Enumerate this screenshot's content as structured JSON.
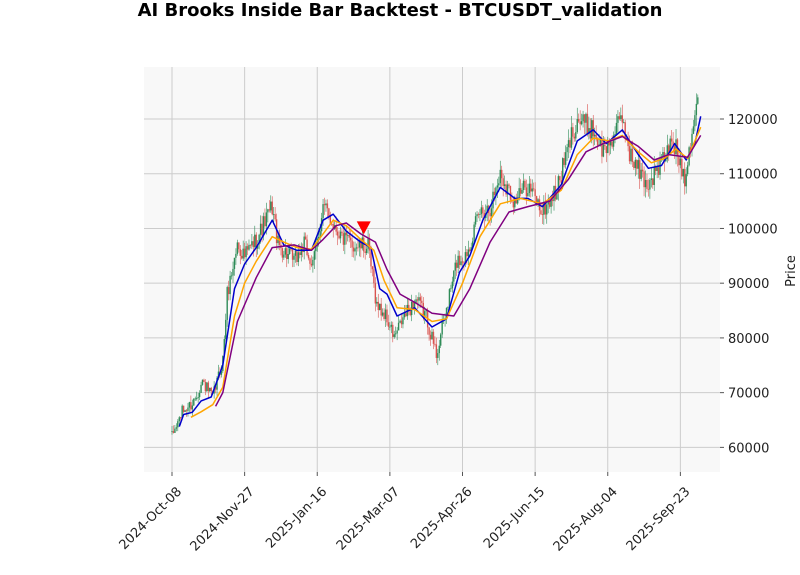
{
  "chart_data": {
    "type": "candlestick",
    "title": "AI Brooks Inside Bar Backtest - BTCUSDT_validation",
    "xlabel": "",
    "ylabel": "Price",
    "x_start": "2024-10-08",
    "x_end": "2025-10-01",
    "ylim": [
      55500,
      129500
    ],
    "grid": true,
    "y_axis_side": "right",
    "x_ticks": [
      "2024-Oct-08",
      "2024-Nov-27",
      "2025-Jan-16",
      "2025-Mar-07",
      "2025-Apr-26",
      "2025-Jun-15",
      "2025-Aug-04",
      "2025-Sep-23"
    ],
    "y_ticks": [
      60000,
      70000,
      80000,
      90000,
      100000,
      110000,
      120000
    ],
    "colors": {
      "up": "#2e8b57",
      "down": "#d9534f",
      "ma_fast": "#0000cc",
      "ma_mid": "#ffa500",
      "ma_slow": "#800080",
      "signal": "#ff0000",
      "plot_bg": "#f8f8f8",
      "grid": "#cccccc"
    },
    "close_anchors": [
      [
        "2024-10-08",
        62000
      ],
      [
        "2024-10-15",
        66500
      ],
      [
        "2024-10-22",
        68000
      ],
      [
        "2024-10-29",
        72000
      ],
      [
        "2024-11-05",
        69000
      ],
      [
        "2024-11-12",
        76000
      ],
      [
        "2024-11-15",
        88000
      ],
      [
        "2024-11-22",
        97000
      ],
      [
        "2024-11-27",
        95000
      ],
      [
        "2024-12-05",
        98000
      ],
      [
        "2024-12-16",
        104000
      ],
      [
        "2024-12-20",
        97000
      ],
      [
        "2024-12-31",
        94000
      ],
      [
        "2025-01-07",
        97000
      ],
      [
        "2025-01-13",
        93000
      ],
      [
        "2025-01-20",
        104000
      ],
      [
        "2025-01-27",
        101000
      ],
      [
        "2025-02-03",
        98000
      ],
      [
        "2025-02-10",
        97000
      ],
      [
        "2025-02-20",
        96500
      ],
      [
        "2025-02-26",
        86000
      ],
      [
        "2025-03-04",
        84000
      ],
      [
        "2025-03-10",
        80000
      ],
      [
        "2025-03-17",
        84000
      ],
      [
        "2025-03-25",
        87000
      ],
      [
        "2025-04-01",
        84000
      ],
      [
        "2025-04-08",
        77000
      ],
      [
        "2025-04-14",
        84000
      ],
      [
        "2025-04-22",
        94000
      ],
      [
        "2025-04-28",
        95000
      ],
      [
        "2025-05-08",
        103000
      ],
      [
        "2025-05-15",
        104000
      ],
      [
        "2025-05-22",
        110000
      ],
      [
        "2025-06-01",
        105000
      ],
      [
        "2025-06-10",
        108000
      ],
      [
        "2025-06-20",
        103000
      ],
      [
        "2025-06-30",
        107000
      ],
      [
        "2025-07-10",
        117000
      ],
      [
        "2025-07-14",
        120000
      ],
      [
        "2025-07-25",
        118000
      ],
      [
        "2025-08-01",
        114000
      ],
      [
        "2025-08-08",
        117000
      ],
      [
        "2025-08-14",
        120000
      ],
      [
        "2025-08-20",
        113000
      ],
      [
        "2025-08-31",
        108000
      ],
      [
        "2025-09-08",
        111000
      ],
      [
        "2025-09-18",
        116000
      ],
      [
        "2025-09-26",
        109500
      ],
      [
        "2025-10-01",
        118000
      ],
      [
        "2025-10-05",
        124000
      ]
    ],
    "moving_averages": [
      {
        "color": "#0000cc",
        "points": [
          [
            "2024-10-13",
            63800
          ],
          [
            "2024-10-16",
            66000
          ],
          [
            "2024-10-22",
            66400
          ],
          [
            "2024-10-28",
            68500
          ],
          [
            "2024-11-04",
            69200
          ],
          [
            "2024-11-12",
            75000
          ],
          [
            "2024-11-20",
            89000
          ],
          [
            "2024-11-27",
            93500
          ],
          [
            "2024-12-05",
            96500
          ],
          [
            "2024-12-16",
            101500
          ],
          [
            "2024-12-24",
            97000
          ],
          [
            "2025-01-02",
            96000
          ],
          [
            "2025-01-12",
            96000
          ],
          [
            "2025-01-20",
            101500
          ],
          [
            "2025-01-27",
            102600
          ],
          [
            "2025-02-05",
            99500
          ],
          [
            "2025-02-15",
            97500
          ],
          [
            "2025-02-22",
            96500
          ],
          [
            "2025-02-28",
            89000
          ],
          [
            "2025-03-05",
            88000
          ],
          [
            "2025-03-12",
            84000
          ],
          [
            "2025-03-24",
            85500
          ],
          [
            "2025-04-05",
            82000
          ],
          [
            "2025-04-15",
            83500
          ],
          [
            "2025-04-24",
            92000
          ],
          [
            "2025-05-01",
            95000
          ],
          [
            "2025-05-10",
            101500
          ],
          [
            "2025-05-22",
            107500
          ],
          [
            "2025-06-01",
            105500
          ],
          [
            "2025-06-10",
            105500
          ],
          [
            "2025-06-20",
            104000
          ],
          [
            "2025-07-03",
            108000
          ],
          [
            "2025-07-14",
            116000
          ],
          [
            "2025-07-25",
            118000
          ],
          [
            "2025-08-03",
            115500
          ],
          [
            "2025-08-14",
            118000
          ],
          [
            "2025-08-25",
            113500
          ],
          [
            "2025-09-01",
            111000
          ],
          [
            "2025-09-10",
            111500
          ],
          [
            "2025-09-19",
            115500
          ],
          [
            "2025-09-27",
            112500
          ],
          [
            "2025-10-03",
            115500
          ],
          [
            "2025-10-07",
            120500
          ]
        ]
      },
      {
        "color": "#ffa500",
        "points": [
          [
            "2024-10-21",
            65500
          ],
          [
            "2024-10-28",
            66500
          ],
          [
            "2024-11-05",
            67800
          ],
          [
            "2024-11-12",
            71000
          ],
          [
            "2024-11-20",
            84000
          ],
          [
            "2024-11-27",
            90000
          ],
          [
            "2024-12-05",
            94000
          ],
          [
            "2024-12-16",
            98500
          ],
          [
            "2024-12-24",
            97500
          ],
          [
            "2025-01-02",
            96500
          ],
          [
            "2025-01-12",
            96200
          ],
          [
            "2025-01-20",
            99000
          ],
          [
            "2025-01-27",
            101500
          ],
          [
            "2025-02-05",
            100500
          ],
          [
            "2025-02-15",
            98000
          ],
          [
            "2025-02-24",
            96000
          ],
          [
            "2025-03-03",
            90500
          ],
          [
            "2025-03-12",
            85500
          ],
          [
            "2025-03-24",
            85200
          ],
          [
            "2025-04-05",
            83000
          ],
          [
            "2025-04-15",
            83500
          ],
          [
            "2025-04-26",
            90000
          ],
          [
            "2025-05-08",
            98500
          ],
          [
            "2025-05-22",
            104500
          ],
          [
            "2025-06-05",
            105500
          ],
          [
            "2025-06-20",
            104500
          ],
          [
            "2025-07-03",
            107000
          ],
          [
            "2025-07-14",
            113500
          ],
          [
            "2025-07-25",
            116500
          ],
          [
            "2025-08-05",
            116000
          ],
          [
            "2025-08-14",
            117000
          ],
          [
            "2025-08-25",
            114000
          ],
          [
            "2025-09-03",
            112000
          ],
          [
            "2025-09-12",
            112800
          ],
          [
            "2025-09-20",
            114500
          ],
          [
            "2025-09-28",
            112800
          ],
          [
            "2025-10-07",
            118500
          ]
        ]
      },
      {
        "color": "#800080",
        "points": [
          [
            "2024-11-07",
            67500
          ],
          [
            "2024-11-12",
            70000
          ],
          [
            "2024-11-22",
            83000
          ],
          [
            "2024-12-05",
            91000
          ],
          [
            "2024-12-16",
            96500
          ],
          [
            "2024-12-31",
            97000
          ],
          [
            "2025-01-12",
            96000
          ],
          [
            "2025-01-20",
            98000
          ],
          [
            "2025-01-29",
            100500
          ],
          [
            "2025-02-05",
            101000
          ],
          [
            "2025-02-15",
            99000
          ],
          [
            "2025-02-25",
            97500
          ],
          [
            "2025-03-05",
            92500
          ],
          [
            "2025-03-14",
            88000
          ],
          [
            "2025-03-24",
            86500
          ],
          [
            "2025-04-05",
            84500
          ],
          [
            "2025-04-20",
            84000
          ],
          [
            "2025-05-01",
            89000
          ],
          [
            "2025-05-15",
            97500
          ],
          [
            "2025-05-28",
            103000
          ],
          [
            "2025-06-10",
            104000
          ],
          [
            "2025-06-25",
            105000
          ],
          [
            "2025-07-08",
            109000
          ],
          [
            "2025-07-20",
            114000
          ],
          [
            "2025-08-01",
            115500
          ],
          [
            "2025-08-14",
            116800
          ],
          [
            "2025-08-25",
            115000
          ],
          [
            "2025-09-05",
            112500
          ],
          [
            "2025-09-15",
            113500
          ],
          [
            "2025-09-28",
            113000
          ],
          [
            "2025-10-07",
            117000
          ]
        ]
      }
    ],
    "signals": [
      {
        "type": "short",
        "date": "2025-02-17",
        "price": 100200
      }
    ]
  }
}
